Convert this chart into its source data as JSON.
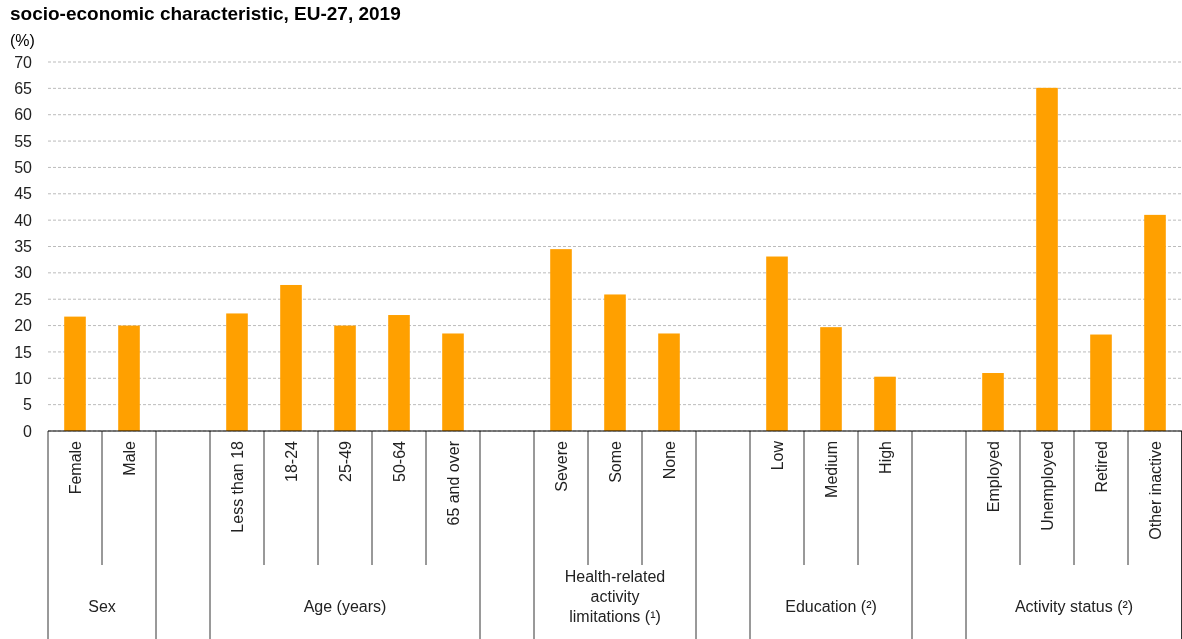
{
  "chart_data": {
    "type": "bar",
    "title": "socio-economic characteristic, EU-27, 2019",
    "ylabel": "(%)",
    "categories": [
      "Female",
      "Male",
      null,
      "Less than 18",
      "18-24",
      "25-49",
      "50-64",
      "65 and over",
      null,
      "Severe",
      "Some",
      "None",
      null,
      "Low",
      "Medium",
      "High",
      null,
      "Employed",
      "Unemployed",
      "Retired",
      "Other inactive"
    ],
    "values": [
      21.7,
      20.0,
      null,
      22.3,
      27.7,
      20.0,
      22.0,
      18.5,
      null,
      34.5,
      25.9,
      18.5,
      null,
      33.1,
      19.7,
      10.3,
      null,
      11.0,
      65.1,
      18.3,
      41.0
    ],
    "color": "#ffa000",
    "ylim": [
      0,
      70
    ],
    "yticks": [
      0,
      5,
      10,
      15,
      20,
      25,
      30,
      35,
      40,
      45,
      50,
      55,
      60,
      65,
      70
    ],
    "grid": "y",
    "annotations": [
      "Sex",
      "Age (years)",
      "Health-related activity limitations (¹)",
      "Education (²)",
      "Activity status (²)"
    ]
  }
}
